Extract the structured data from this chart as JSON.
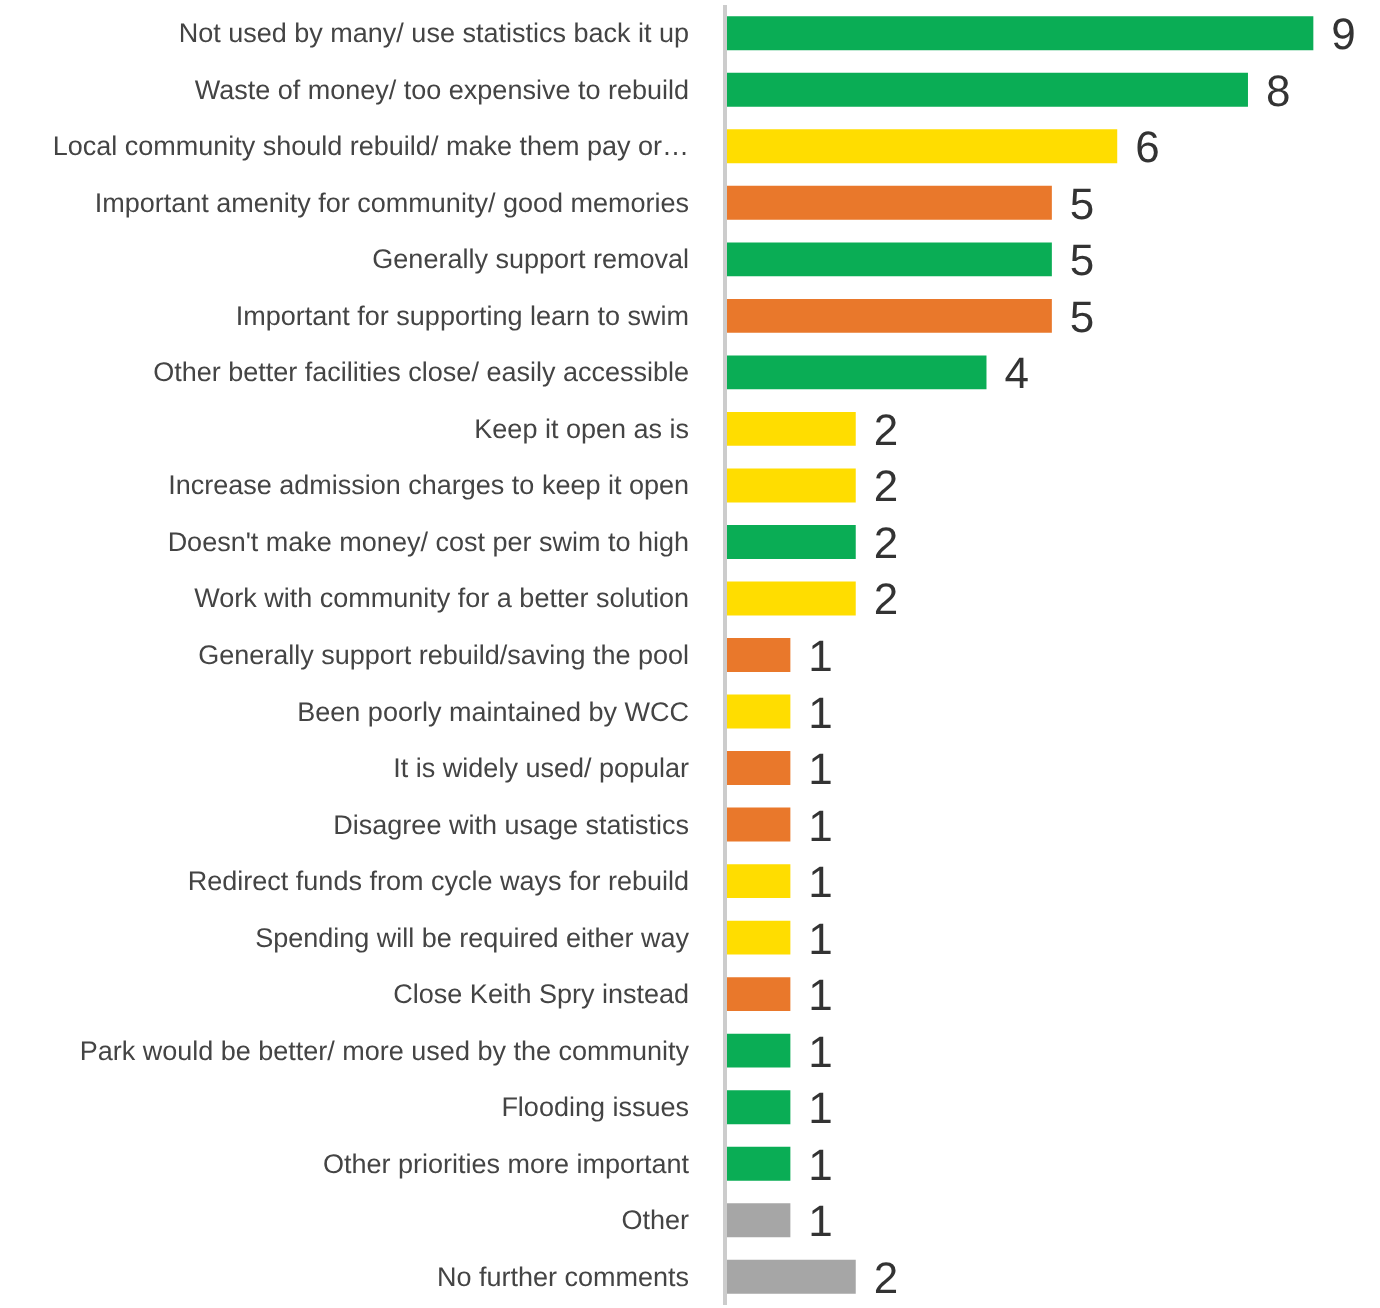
{
  "chart_data": {
    "type": "bar",
    "orientation": "horizontal",
    "data_labels": true,
    "grid": false,
    "tick_labels": "y",
    "categories": [
      "Not used by many/ use statistics back it up",
      "Waste of money/ too expensive to rebuild",
      "Local community should rebuild/ make them pay or…",
      "Important amenity for community/ good memories",
      "Generally support removal",
      "Important for supporting learn to swim",
      "Other better facilities close/ easily accessible",
      "Keep it open as is",
      "Increase admission charges to keep it open",
      "Doesn't make money/ cost per swim to high",
      "Work with community for a better solution",
      "Generally support rebuild/saving the pool",
      "Been poorly maintained by WCC",
      "It is widely used/ popular",
      "Disagree with usage statistics",
      "Redirect funds from cycle ways for rebuild",
      "Spending will be required either way",
      "Close Keith Spry instead",
      "Park would be better/ more used by the community",
      "Flooding issues",
      "Other priorities more important",
      "Other",
      "No further comments"
    ],
    "values": [
      9,
      8,
      6,
      5,
      5,
      5,
      4,
      2,
      2,
      2,
      2,
      1,
      1,
      1,
      1,
      1,
      1,
      1,
      1,
      1,
      1,
      1,
      2
    ],
    "colors": [
      "#0aad55",
      "#0aad55",
      "#ffdd00",
      "#e9782b",
      "#0aad55",
      "#e9782b",
      "#0aad55",
      "#ffdd00",
      "#ffdd00",
      "#0aad55",
      "#ffdd00",
      "#e9782b",
      "#ffdd00",
      "#e9782b",
      "#e9782b",
      "#ffdd00",
      "#ffdd00",
      "#e9782b",
      "#0aad55",
      "#0aad55",
      "#0aad55",
      "#a6a6a6",
      "#a6a6a6"
    ]
  }
}
